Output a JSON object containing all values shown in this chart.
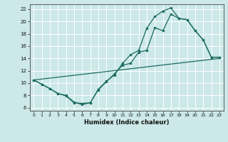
{
  "xlabel": "Humidex (Indice chaleur)",
  "bg_color": "#cce8e8",
  "grid_color": "#ffffff",
  "line_color": "#1a6b60",
  "xlim": [
    -0.5,
    23.5
  ],
  "ylim": [
    5.5,
    22.8
  ],
  "xticks": [
    0,
    1,
    2,
    3,
    4,
    5,
    6,
    7,
    8,
    9,
    10,
    11,
    12,
    13,
    14,
    15,
    16,
    17,
    18,
    19,
    20,
    21,
    22,
    23
  ],
  "yticks": [
    6,
    8,
    10,
    12,
    14,
    16,
    18,
    20,
    22
  ],
  "line1_x": [
    0,
    1,
    2,
    3,
    4,
    5,
    6,
    7,
    8,
    9,
    10,
    11,
    12,
    13,
    14,
    15,
    16,
    17,
    18,
    19,
    20,
    21,
    22,
    23
  ],
  "line1_y": [
    10.5,
    9.8,
    9.1,
    8.3,
    7.9,
    6.8,
    6.7,
    6.8,
    8.9,
    10.2,
    11.5,
    12.9,
    13.2,
    15.0,
    15.3,
    19.0,
    18.5,
    21.2,
    20.5,
    20.3,
    18.5,
    17.0,
    14.2,
    14.2
  ],
  "line2_x": [
    0,
    1,
    2,
    3,
    4,
    5,
    6,
    7,
    8,
    9,
    10,
    11,
    12,
    13,
    14,
    15,
    16,
    17,
    18,
    19,
    20,
    21,
    22,
    23
  ],
  "line2_y": [
    10.5,
    9.8,
    9.1,
    8.3,
    8.0,
    6.9,
    6.5,
    6.8,
    9.0,
    10.3,
    11.3,
    13.2,
    14.6,
    15.3,
    18.9,
    20.8,
    21.7,
    22.2,
    20.5,
    20.3,
    18.5,
    17.0,
    14.2,
    14.2
  ],
  "line3_x": [
    0,
    23
  ],
  "line3_y": [
    10.5,
    14.0
  ]
}
